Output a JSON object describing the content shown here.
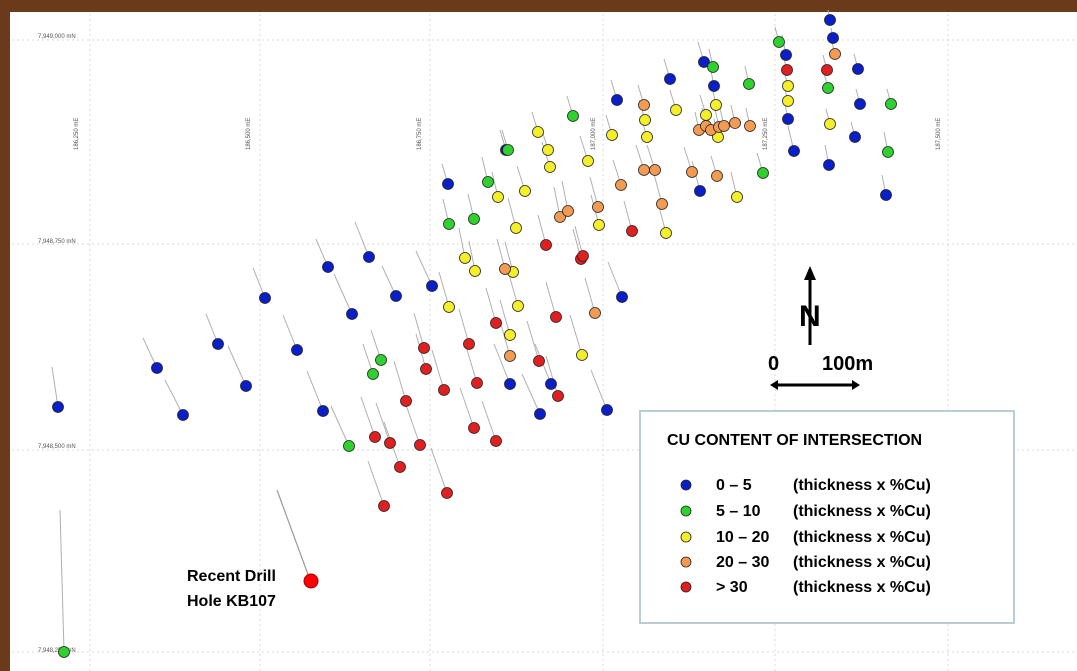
{
  "frame": {
    "border_color": "#6b3a1a"
  },
  "grid": {
    "easting_labels": [
      "186,250 mE",
      "186,500 mE",
      "186,750 mE",
      "187,000 mE",
      "187,250 mE",
      "187,500 mE"
    ],
    "northing_labels": [
      "7,949,000 mN",
      "7,948,750 mN",
      "7,948,500 mN",
      "7,948,250 mN"
    ]
  },
  "north_arrow": {
    "label": "N"
  },
  "scale_bar": {
    "start_label": "0",
    "end_label": "100m"
  },
  "callout": {
    "line1": "Recent Drill",
    "line2": "Hole KB107",
    "color": "#ff0000"
  },
  "legend": {
    "title": "CU CONTENT OF INTERSECTION",
    "items": [
      {
        "range": "0 – 5",
        "description": "(thickness x %Cu)",
        "color": "#0b1fc8"
      },
      {
        "range": "5 – 10",
        "description": "(thickness x %Cu)",
        "color": "#2fd12f"
      },
      {
        "range": "10 – 20",
        "description": "(thickness x %Cu)",
        "color": "#f5ef2a"
      },
      {
        "range": "20 – 30",
        "description": "(thickness x %Cu)",
        "color": "#f39b52"
      },
      {
        "range": "> 30",
        "description": "(thickness x %Cu)",
        "color": "#e02020"
      }
    ]
  }
}
